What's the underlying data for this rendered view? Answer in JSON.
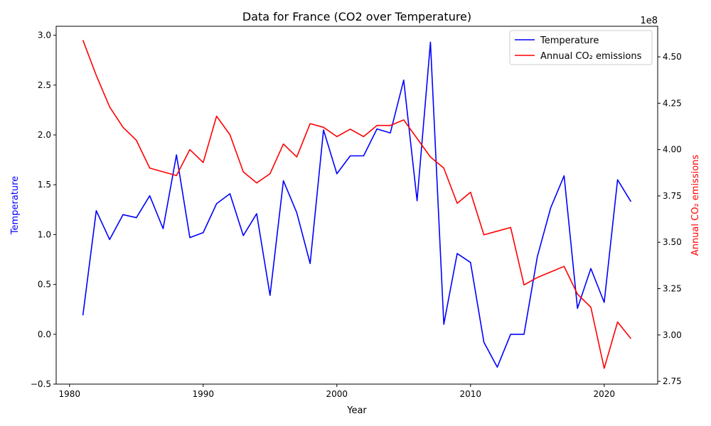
{
  "chart_data": {
    "type": "line",
    "title": "Data for France (CO2 over Temperature)",
    "xlabel": "Year",
    "ylabel_left": "Temperature",
    "ylabel_right": "Annual CO₂ emissions",
    "right_axis_multiplier": "1e8",
    "xlim": [
      1979,
      2024
    ],
    "ylim_left": [
      -0.5,
      3.09
    ],
    "ylim_right": [
      2.735,
      4.665
    ],
    "x_ticks": [
      1980,
      1990,
      2000,
      2010,
      2020
    ],
    "y_ticks_left": [
      -0.5,
      0.0,
      0.5,
      1.0,
      1.5,
      2.0,
      2.5,
      3.0
    ],
    "y_ticks_left_labels": [
      "−0.5",
      "0.0",
      "0.5",
      "1.0",
      "1.5",
      "2.0",
      "2.5",
      "3.0"
    ],
    "y_ticks_right": [
      2.75,
      3.0,
      3.25,
      3.5,
      3.75,
      4.0,
      4.25,
      4.5
    ],
    "y_ticks_right_labels": [
      "2.75",
      "3.00",
      "3.25",
      "3.50",
      "3.75",
      "4.00",
      "4.25",
      "4.50"
    ],
    "legend_position": "top-right",
    "grid": false,
    "x": [
      1981,
      1982,
      1983,
      1984,
      1985,
      1986,
      1987,
      1988,
      1989,
      1990,
      1991,
      1992,
      1993,
      1994,
      1995,
      1996,
      1997,
      1998,
      1999,
      2000,
      2001,
      2002,
      2003,
      2004,
      2005,
      2006,
      2007,
      2008,
      2009,
      2010,
      2011,
      2012,
      2013,
      2014,
      2015,
      2016,
      2017,
      2018,
      2019,
      2020,
      2021,
      2022
    ],
    "series": [
      {
        "name": "Temperature",
        "axis": "left",
        "color": "#0000ff",
        "values": [
          0.19,
          1.24,
          0.95,
          1.2,
          1.17,
          1.39,
          1.06,
          1.8,
          0.97,
          1.02,
          1.31,
          1.41,
          0.99,
          1.21,
          0.39,
          1.54,
          1.22,
          0.71,
          2.05,
          1.61,
          1.79,
          1.79,
          2.06,
          2.02,
          2.55,
          1.34,
          2.93,
          0.1,
          0.81,
          0.72,
          -0.08,
          -0.33,
          0.0,
          0.0,
          0.78,
          1.27,
          1.59,
          0.26,
          0.66,
          0.32,
          1.55,
          1.33
        ]
      },
      {
        "name": "Annual CO₂ emissions",
        "axis": "right",
        "color": "#ff0000",
        "values": [
          4.59,
          4.4,
          4.23,
          4.12,
          4.05,
          3.9,
          3.88,
          3.86,
          4.0,
          3.93,
          4.18,
          4.08,
          3.88,
          3.82,
          3.87,
          4.03,
          3.96,
          4.14,
          4.12,
          4.07,
          4.11,
          4.07,
          4.13,
          4.13,
          4.16,
          4.06,
          3.96,
          3.9,
          3.71,
          3.77,
          3.54,
          3.56,
          3.58,
          3.27,
          3.31,
          3.34,
          3.37,
          3.22,
          3.15,
          2.82,
          3.07,
          2.98
        ]
      }
    ]
  }
}
